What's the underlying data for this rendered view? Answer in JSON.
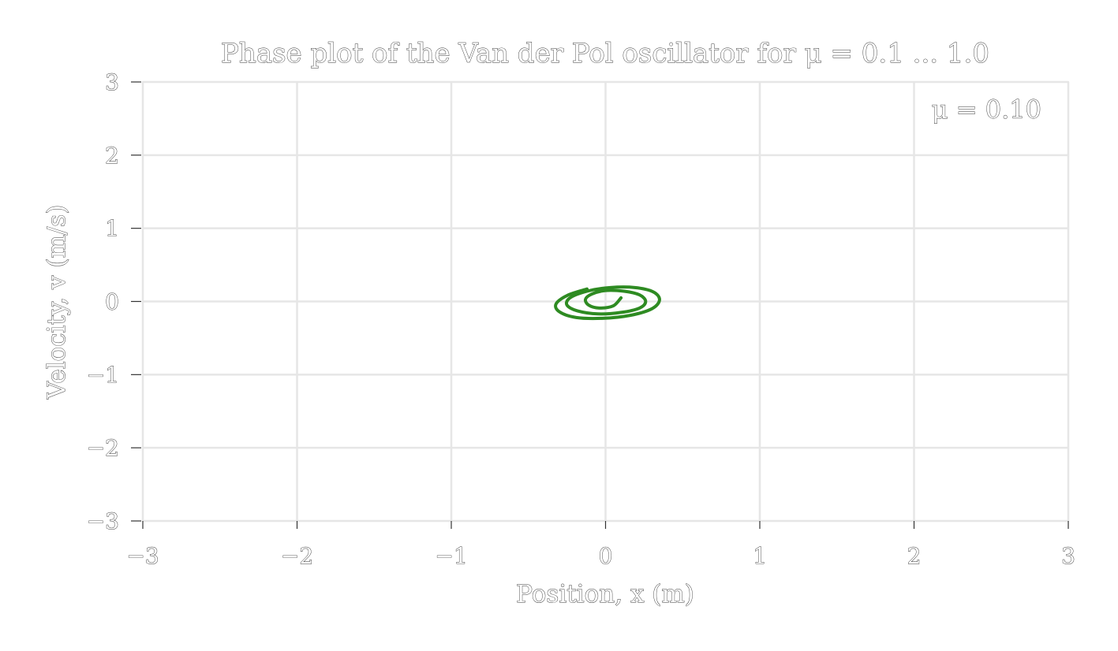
{
  "chart_data": {
    "type": "line",
    "title": "Phase plot of the Van der Pol oscillator for μ = 0.1 ... 1.0",
    "xlabel": "Position, x (m)",
    "ylabel": "Velocity, v (m/s)",
    "xlim": [
      -3,
      3
    ],
    "ylim": [
      -3,
      3
    ],
    "x_ticks": [
      -3,
      -2,
      -1,
      0,
      1,
      2,
      3
    ],
    "y_ticks": [
      -3,
      -2,
      -1,
      0,
      1,
      2,
      3
    ],
    "x_tick_labels": [
      "−3",
      "−2",
      "−1",
      "0",
      "1",
      "2",
      "3"
    ],
    "y_tick_labels": [
      "−3",
      "−2",
      "−1",
      "0",
      "1",
      "2",
      "3"
    ],
    "grid": true,
    "annotation": "μ = 0.10",
    "annotation_position": "top-right",
    "series": [
      {
        "color": "#2e8b22",
        "x": [
          0.1,
          0.05,
          -0.04,
          -0.11,
          -0.13,
          -0.09,
          0.0,
          0.12,
          0.22,
          0.26,
          0.22,
          0.1,
          -0.05,
          -0.18,
          -0.25,
          -0.23,
          -0.12,
          0.03,
          0.19,
          0.31,
          0.35,
          0.3,
          0.16,
          -0.02,
          -0.19,
          -0.3,
          -0.32,
          -0.24,
          -0.12
        ],
        "y": [
          0.05,
          -0.06,
          -0.09,
          -0.05,
          0.03,
          0.1,
          0.15,
          0.14,
          0.09,
          0.0,
          -0.09,
          -0.15,
          -0.17,
          -0.13,
          -0.05,
          0.05,
          0.14,
          0.19,
          0.19,
          0.13,
          0.02,
          -0.1,
          -0.19,
          -0.23,
          -0.22,
          -0.14,
          -0.03,
          0.09,
          0.17
        ]
      }
    ]
  }
}
